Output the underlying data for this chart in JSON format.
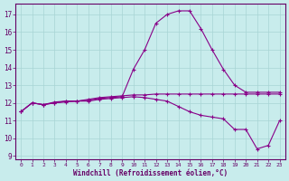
{
  "xlabel": "Windchill (Refroidissement éolien,°C)",
  "background_color": "#c8ecec",
  "grid_color": "#a8d4d4",
  "line_color": "#880088",
  "xlim": [
    -0.5,
    23.5
  ],
  "ylim": [
    8.8,
    17.6
  ],
  "yticks": [
    9,
    10,
    11,
    12,
    13,
    14,
    15,
    16,
    17
  ],
  "xticks": [
    0,
    1,
    2,
    3,
    4,
    5,
    6,
    7,
    8,
    9,
    10,
    11,
    12,
    13,
    14,
    15,
    16,
    17,
    18,
    19,
    20,
    21,
    22,
    23
  ],
  "curve1_x": [
    0,
    1,
    2,
    3,
    4,
    5,
    6,
    7,
    8,
    9,
    10,
    11,
    12,
    13,
    14,
    15,
    16,
    17,
    18,
    19,
    20,
    21,
    22,
    23
  ],
  "curve1_y": [
    11.5,
    12.0,
    11.9,
    12.0,
    12.1,
    12.1,
    12.2,
    12.3,
    12.35,
    12.4,
    12.45,
    12.45,
    12.5,
    12.5,
    12.5,
    12.5,
    12.5,
    12.5,
    12.5,
    12.5,
    12.5,
    12.5,
    12.5,
    12.5
  ],
  "curve2_x": [
    0,
    1,
    2,
    3,
    4,
    5,
    6,
    7,
    8,
    9,
    10,
    11,
    12,
    13,
    14,
    15,
    16,
    17,
    18,
    19,
    20,
    21,
    22,
    23
  ],
  "curve2_y": [
    11.5,
    12.0,
    11.9,
    12.05,
    12.1,
    12.1,
    12.15,
    12.25,
    12.3,
    12.35,
    13.9,
    15.0,
    16.5,
    17.0,
    17.2,
    17.2,
    16.2,
    15.0,
    13.9,
    13.0,
    12.6,
    12.6,
    12.6,
    12.6
  ],
  "curve3_x": [
    0,
    1,
    2,
    3,
    4,
    5,
    6,
    7,
    8,
    9,
    10,
    11,
    12,
    13,
    14,
    15,
    16,
    17,
    18,
    19,
    20,
    21,
    22,
    23
  ],
  "curve3_y": [
    11.5,
    12.0,
    11.9,
    12.0,
    12.05,
    12.1,
    12.1,
    12.2,
    12.25,
    12.3,
    12.35,
    12.3,
    12.2,
    12.1,
    11.8,
    11.5,
    11.3,
    11.2,
    11.1,
    10.5,
    10.5,
    9.4,
    9.6,
    11.0
  ]
}
